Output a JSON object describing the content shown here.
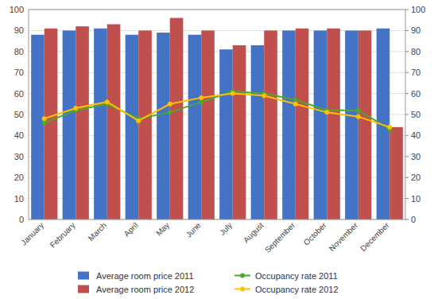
{
  "chart_data": {
    "type": "bar",
    "categories": [
      "January",
      "February",
      "March",
      "April",
      "May",
      "June",
      "July",
      "August",
      "September",
      "October",
      "November",
      "December"
    ],
    "series": [
      {
        "name": "Average room price 2011",
        "type": "bar",
        "color": "#4472c4",
        "values": [
          88,
          90,
          91,
          88,
          89,
          88,
          81,
          83,
          90,
          90,
          90,
          91
        ]
      },
      {
        "name": "Average room price 2012",
        "type": "bar",
        "color": "#c0504d",
        "values": [
          91,
          92,
          93,
          90,
          96,
          90,
          83,
          90,
          91,
          91,
          90,
          44
        ]
      },
      {
        "name": "Occupancy rate 2011",
        "type": "line",
        "axis": "y2",
        "marker": "circle",
        "color": "#4ea72e",
        "values": [
          46,
          52,
          55,
          48,
          51,
          56,
          61,
          60,
          57,
          52,
          52,
          43
        ]
      },
      {
        "name": "Occupancy rate 2012",
        "type": "line",
        "axis": "y2",
        "marker": "circle",
        "color": "#ffc000",
        "values": [
          48,
          53,
          56,
          47,
          55,
          58,
          60,
          59,
          55,
          51,
          49,
          44
        ]
      }
    ],
    "ylim": [
      0,
      100
    ],
    "yticks": [
      0,
      10,
      20,
      30,
      40,
      50,
      60,
      70,
      80,
      90,
      100
    ],
    "y2lim": [
      0,
      100
    ],
    "y2ticks": [
      0,
      10,
      20,
      30,
      40,
      50,
      60,
      70,
      80,
      90,
      100
    ],
    "grid": true,
    "legend": "bottom"
  }
}
